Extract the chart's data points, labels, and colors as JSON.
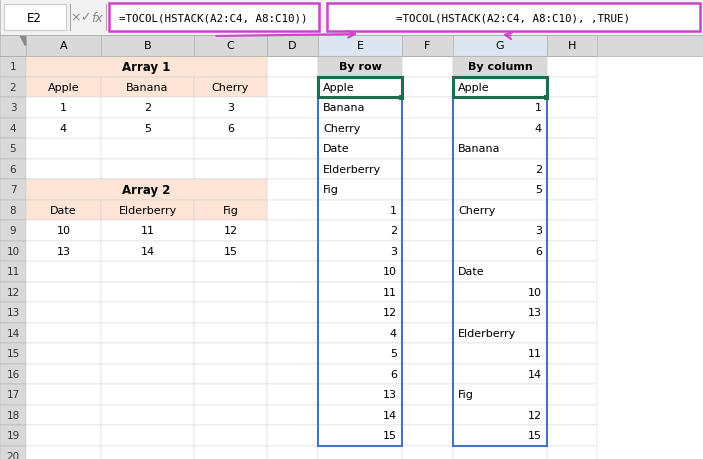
{
  "formula_bar_left": "=TOCOL(HSTACK(A2:C4, A8:C10))",
  "formula_bar_right": "=TOCOL(HSTACK(A2:C4, A8:C10), ,TRUE)",
  "cell_ref": "E2",
  "col_headers": [
    "A",
    "B",
    "C",
    "D",
    "E",
    "F",
    "G",
    "H"
  ],
  "array1_label": "Array 1",
  "array1_header": [
    "Apple",
    "Banana",
    "Cherry"
  ],
  "array1_row1": [
    "1",
    "2",
    "3"
  ],
  "array1_row2": [
    "4",
    "5",
    "6"
  ],
  "array2_label": "Array 2",
  "array2_header": [
    "Date",
    "Elderberry",
    "Fig"
  ],
  "array2_row1": [
    "10",
    "11",
    "12"
  ],
  "array2_row2": [
    "13",
    "14",
    "15"
  ],
  "by_row_label": "By row",
  "by_col_label": "By column",
  "by_row_data": [
    "Apple",
    "Banana",
    "Cherry",
    "Date",
    "Elderberry",
    "Fig",
    "1",
    "2",
    "3",
    "10",
    "11",
    "12",
    "4",
    "5",
    "6",
    "13",
    "14",
    "15"
  ],
  "by_col_items": [
    [
      1,
      "Apple",
      "left"
    ],
    [
      2,
      "1",
      "right"
    ],
    [
      3,
      "4",
      "right"
    ],
    [
      4,
      "Banana",
      "left"
    ],
    [
      5,
      "2",
      "right"
    ],
    [
      6,
      "5",
      "right"
    ],
    [
      7,
      "Cherry",
      "left"
    ],
    [
      8,
      "3",
      "right"
    ],
    [
      9,
      "6",
      "right"
    ],
    [
      10,
      "Date",
      "left"
    ],
    [
      11,
      "10",
      "right"
    ],
    [
      12,
      "13",
      "right"
    ],
    [
      13,
      "Elderberry",
      "left"
    ],
    [
      14,
      "11",
      "right"
    ],
    [
      15,
      "14",
      "right"
    ],
    [
      16,
      "Fig",
      "left"
    ],
    [
      17,
      "12",
      "right"
    ],
    [
      18,
      "15",
      "right"
    ]
  ],
  "colors": {
    "array_bg": "#fce4d6",
    "formula_bar_border": "#cc44cc",
    "cell_border_dark": "#1f6b4e",
    "cell_border_blue": "#4472c4",
    "grid_color": "#d0d0d0",
    "background": "#ffffff",
    "row_col_header_bg": "#d9d9d9",
    "col_highlight_bg": "#dce6f1",
    "arrow_color": "#cc44cc",
    "formula_bg": "#f2f2f2"
  },
  "fig_width": 7.03,
  "fig_height": 4.6,
  "dpi": 100,
  "total_rows": 20,
  "highlighted_cols": [
    4,
    6
  ]
}
